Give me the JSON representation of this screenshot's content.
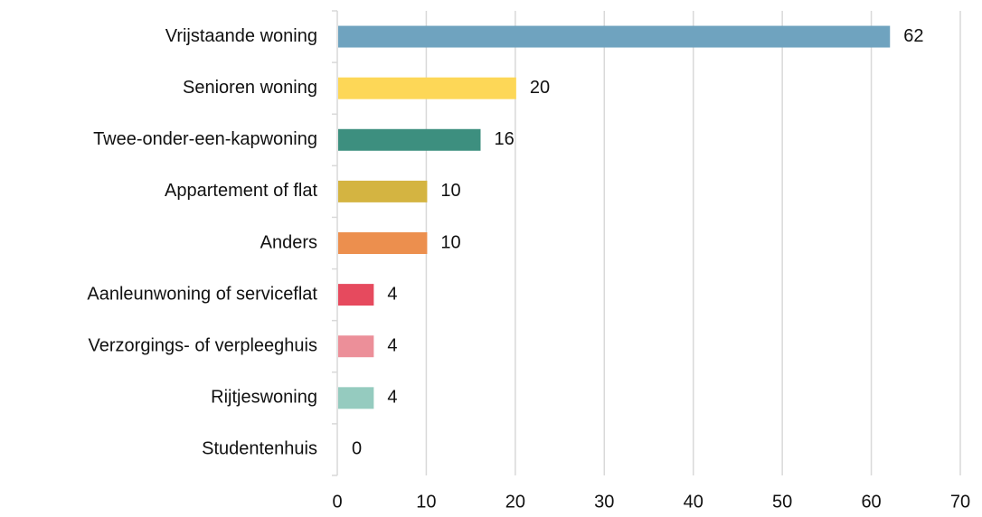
{
  "chart_data": {
    "type": "bar",
    "orientation": "horizontal",
    "categories": [
      "Vrijstaande woning",
      "Senioren woning",
      "Twee-onder-een-kapwoning",
      "Appartement of flat",
      "Anders",
      "Aanleunwoning of serviceflat",
      "Verzorgings- of verpleeghuis",
      "Rijtjeswoning",
      "Studentenhuis"
    ],
    "values": [
      62,
      20,
      16,
      10,
      10,
      4,
      4,
      4,
      0
    ],
    "colors": [
      "#6fa3bf",
      "#fdd757",
      "#3d8f7f",
      "#d4b441",
      "#ec8f4e",
      "#e64a5e",
      "#ec8f99",
      "#95cbbf",
      "#6fa3bf"
    ],
    "xlim": [
      0,
      70
    ],
    "xticks": [
      0,
      10,
      20,
      30,
      40,
      50,
      60,
      70
    ],
    "grid": true
  }
}
